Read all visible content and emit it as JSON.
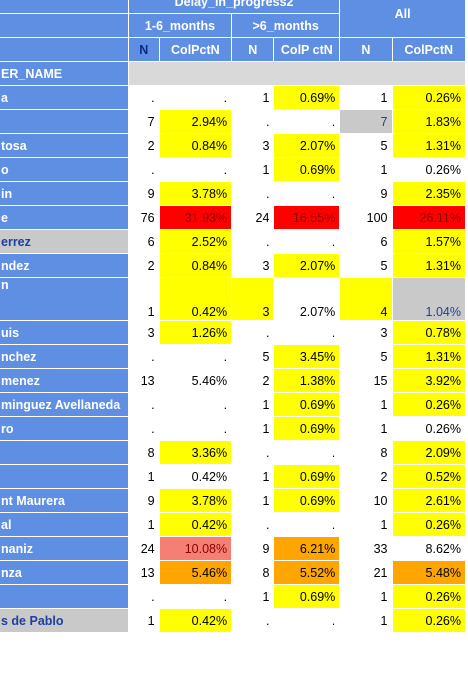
{
  "header": {
    "group_title": "Delay_in_progress2",
    "all_title": "All",
    "sub_groups": [
      "1-6_months",
      ">6_months"
    ],
    "stat_labels": [
      "N",
      "ColPctN",
      "N",
      "ColP ctN",
      "N",
      "ColPctN"
    ],
    "row_dim_label": "ER_NAME"
  },
  "colors": {
    "header_blue": "#5f8fe2",
    "highlight_yellow": "#ffff00",
    "highlight_red": "#ff0000",
    "highlight_salmon": "#f47f72",
    "highlight_orange": "#ffa500",
    "grey": "#c9c9c9"
  },
  "rows": [
    {
      "label": "a",
      "c": [
        ".",
        ".",
        "1",
        "0.69%",
        "1",
        "0.26%"
      ],
      "bg": [
        "w",
        "w",
        "w",
        "y",
        "w",
        "y"
      ]
    },
    {
      "label": "",
      "c": [
        "7",
        "2.94%",
        ".",
        ".",
        "7",
        "1.83%"
      ],
      "bg": [
        "w",
        "y",
        "w",
        "w",
        "g",
        "y"
      ]
    },
    {
      "label": "tosa",
      "c": [
        "2",
        "0.84%",
        "3",
        "2.07%",
        "5",
        "1.31%"
      ],
      "bg": [
        "w",
        "y",
        "w",
        "y",
        "w",
        "y"
      ]
    },
    {
      "label": "o",
      "c": [
        ".",
        ".",
        "1",
        "0.69%",
        "1",
        "0.26%"
      ],
      "bg": [
        "w",
        "w",
        "w",
        "y",
        "w",
        "w"
      ]
    },
    {
      "label": "in",
      "c": [
        "9",
        "3.78%",
        ".",
        ".",
        "9",
        "2.35%"
      ],
      "bg": [
        "w",
        "y",
        "w",
        "w",
        "w",
        "y"
      ]
    },
    {
      "label": "e",
      "c": [
        "76",
        "31.93%",
        "24",
        "16.55%",
        "100",
        "26.11%"
      ],
      "bg": [
        "w",
        "r",
        "w",
        "r",
        "w",
        "r"
      ]
    },
    {
      "label": "errez",
      "c": [
        "6",
        "2.52%",
        ".",
        ".",
        "6",
        "1.57%"
      ],
      "bg": [
        "w",
        "y",
        "w",
        "w",
        "w",
        "y"
      ],
      "alt": true
    },
    {
      "label": "ndez",
      "c": [
        "2",
        "0.84%",
        "3",
        "2.07%",
        "5",
        "1.31%"
      ],
      "bg": [
        "w",
        "y",
        "w",
        "y",
        "w",
        "y"
      ]
    },
    {
      "label": "n",
      "c": [
        "1",
        "0.42%",
        "3",
        "2.07%",
        "4",
        "1.04%"
      ],
      "bg": [
        "w",
        "y",
        "y",
        "w",
        "y",
        "g"
      ],
      "tall": true
    },
    {
      "label": "uis",
      "c": [
        "3",
        "1.26%",
        ".",
        ".",
        "3",
        "0.78%"
      ],
      "bg": [
        "w",
        "y",
        "w",
        "w",
        "w",
        "y"
      ]
    },
    {
      "label": "nchez",
      "c": [
        ".",
        ".",
        "5",
        "3.45%",
        "5",
        "1.31%"
      ],
      "bg": [
        "w",
        "w",
        "w",
        "y",
        "w",
        "y"
      ]
    },
    {
      "label": "menez",
      "c": [
        "13",
        "5.46%",
        "2",
        "1.38%",
        "15",
        "3.92%"
      ],
      "bg": [
        "w",
        "w",
        "w",
        "y",
        "w",
        "y"
      ]
    },
    {
      "label": "minguez Avellaneda",
      "c": [
        ".",
        ".",
        "1",
        "0.69%",
        "1",
        "0.26%"
      ],
      "bg": [
        "w",
        "w",
        "w",
        "y",
        "w",
        "y"
      ]
    },
    {
      "label": "ro",
      "c": [
        ".",
        ".",
        "1",
        "0.69%",
        "1",
        "0.26%"
      ],
      "bg": [
        "w",
        "w",
        "w",
        "y",
        "w",
        "w"
      ]
    },
    {
      "label": "",
      "c": [
        "8",
        "3.36%",
        ".",
        ".",
        "8",
        "2.09%"
      ],
      "bg": [
        "w",
        "y",
        "w",
        "w",
        "w",
        "y"
      ]
    },
    {
      "label": "",
      "c": [
        "1",
        "0.42%",
        "1",
        "0.69%",
        "2",
        "0.52%"
      ],
      "bg": [
        "w",
        "w",
        "w",
        "y",
        "w",
        "y"
      ]
    },
    {
      "label": "nt Maurera",
      "c": [
        "9",
        "3.78%",
        "1",
        "0.69%",
        "10",
        "2.61%"
      ],
      "bg": [
        "w",
        "y",
        "w",
        "y",
        "w",
        "y"
      ]
    },
    {
      "label": "al",
      "c": [
        "1",
        "0.42%",
        ".",
        ".",
        "1",
        "0.26%"
      ],
      "bg": [
        "w",
        "y",
        "w",
        "w",
        "w",
        "y"
      ]
    },
    {
      "label": "naniz",
      "c": [
        "24",
        "10.08%",
        "9",
        "6.21%",
        "33",
        "8.62%"
      ],
      "bg": [
        "w",
        "s",
        "w",
        "o",
        "w",
        "w"
      ]
    },
    {
      "label": "nza",
      "c": [
        "13",
        "5.46%",
        "8",
        "5.52%",
        "21",
        "5.48%"
      ],
      "bg": [
        "w",
        "o",
        "w",
        "o",
        "w",
        "o"
      ]
    },
    {
      "label": "",
      "c": [
        ".",
        ".",
        "1",
        "0.69%",
        "1",
        "0.26%"
      ],
      "bg": [
        "w",
        "w",
        "w",
        "y",
        "w",
        "y"
      ]
    },
    {
      "label": "s de Pablo",
      "c": [
        "1",
        "0.42%",
        ".",
        ".",
        "1",
        "0.26%"
      ],
      "bg": [
        "w",
        "y",
        "w",
        "w",
        "w",
        "y"
      ],
      "alt": true
    }
  ]
}
